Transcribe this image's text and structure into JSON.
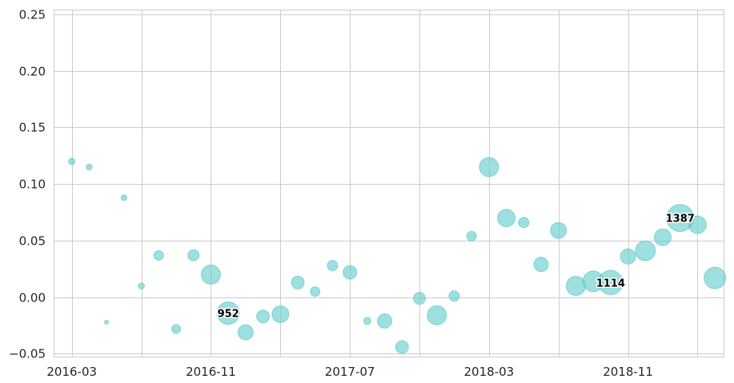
{
  "chart_data": {
    "type": "scatter",
    "title": "",
    "xlabel": "",
    "ylabel": "",
    "ylim": [
      -0.05,
      0.25
    ],
    "yticks": [
      "−0.05",
      "0.00",
      "0.05",
      "0.10",
      "0.15",
      "0.20",
      "0.25"
    ],
    "ytick_values": [
      -0.05,
      0,
      0.05,
      0.1,
      0.15,
      0.2,
      0.25
    ],
    "xticks": [
      "2016-03",
      "2016-11",
      "2017-07",
      "2018-03",
      "2018-11"
    ],
    "xtick_months": [
      0,
      8,
      16,
      24,
      32
    ],
    "xlim_months": [
      -1,
      37.5
    ],
    "grid": true,
    "color": "#5ecaca",
    "points": [
      {
        "x": "2016-03",
        "y": 0.12,
        "size": 77
      },
      {
        "x": "2016-04",
        "y": 0.115,
        "size": 66
      },
      {
        "x": "2016-05",
        "y": -0.022,
        "size": 30
      },
      {
        "x": "2016-06",
        "y": 0.088,
        "size": 59
      },
      {
        "x": "2016-07",
        "y": 0.01,
        "size": 69
      },
      {
        "x": "2016-08",
        "y": 0.037,
        "size": 173
      },
      {
        "x": "2016-09",
        "y": -0.028,
        "size": 145
      },
      {
        "x": "2016-10",
        "y": 0.037,
        "size": 235
      },
      {
        "x": "2016-11",
        "y": 0.02,
        "size": 691
      },
      {
        "x": "2016-12",
        "y": -0.014,
        "size": 952,
        "label": "952"
      },
      {
        "x": "2017-01",
        "y": -0.031,
        "size": 433
      },
      {
        "x": "2017-02",
        "y": -0.017,
        "size": 307
      },
      {
        "x": "2017-03",
        "y": -0.015,
        "size": 529
      },
      {
        "x": "2017-04",
        "y": 0.013,
        "size": 307
      },
      {
        "x": "2017-05",
        "y": 0.005,
        "size": 173
      },
      {
        "x": "2017-06",
        "y": 0.028,
        "size": 203
      },
      {
        "x": "2017-07",
        "y": 0.022,
        "size": 347
      },
      {
        "x": "2017-08",
        "y": -0.021,
        "size": 97
      },
      {
        "x": "2017-09",
        "y": -0.021,
        "size": 389
      },
      {
        "x": "2017-10",
        "y": -0.044,
        "size": 307
      },
      {
        "x": "2017-11",
        "y": -0.001,
        "size": 270
      },
      {
        "x": "2017-12",
        "y": -0.016,
        "size": 691
      },
      {
        "x": "2018-01",
        "y": 0.001,
        "size": 203
      },
      {
        "x": "2018-02",
        "y": 0.054,
        "size": 173
      },
      {
        "x": "2018-03",
        "y": 0.115,
        "size": 691
      },
      {
        "x": "2018-04",
        "y": 0.07,
        "size": 581
      },
      {
        "x": "2018-05",
        "y": 0.066,
        "size": 203
      },
      {
        "x": "2018-06",
        "y": 0.029,
        "size": 389
      },
      {
        "x": "2018-07",
        "y": 0.059,
        "size": 480
      },
      {
        "x": "2018-08",
        "y": 0.01,
        "size": 691
      },
      {
        "x": "2018-09",
        "y": 0.014,
        "size": 811
      },
      {
        "x": "2018-10",
        "y": 0.013,
        "size": 1114,
        "label": "1114"
      },
      {
        "x": "2018-11",
        "y": 0.036,
        "size": 433
      },
      {
        "x": "2018-12",
        "y": 0.041,
        "size": 750
      },
      {
        "x": "2019-01",
        "y": 0.053,
        "size": 529
      },
      {
        "x": "2019-02",
        "y": 0.07,
        "size": 1387,
        "label": "1387"
      },
      {
        "x": "2019-03",
        "y": 0.064,
        "size": 581
      },
      {
        "x": "2019-04",
        "y": 0.017,
        "size": 875
      }
    ]
  }
}
